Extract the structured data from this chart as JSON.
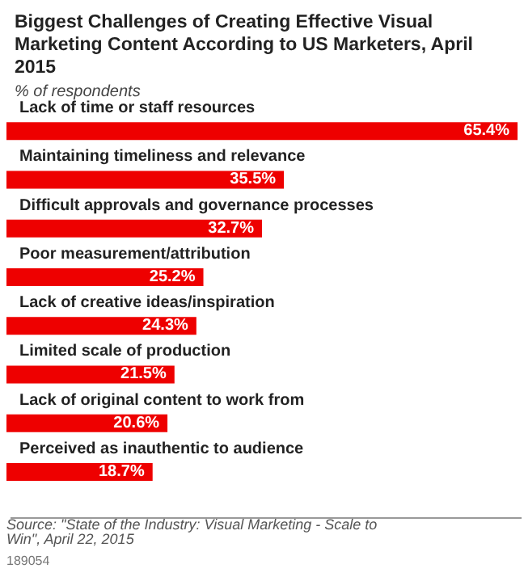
{
  "chart_data": {
    "type": "bar",
    "orientation": "horizontal",
    "title": "Biggest Challenges of Creating Effective Visual Marketing Content According to US Marketers, April 2015",
    "subtitle": "% of respondents",
    "categories": [
      "Lack of time or staff resources",
      "Maintaining timeliness and relevance",
      "Difficult approvals and governance processes",
      "Poor measurement/attribution",
      "Lack of creative ideas/inspiration",
      "Limited scale of production",
      "Lack of original content to work from",
      "Perceived as inauthentic to audience"
    ],
    "values": [
      65.4,
      35.5,
      32.7,
      25.2,
      24.3,
      21.5,
      20.6,
      18.7
    ],
    "value_labels": [
      "65.4%",
      "35.5%",
      "32.7%",
      "25.2%",
      "24.3%",
      "21.5%",
      "20.6%",
      "18.7%"
    ],
    "color": "#ee0000",
    "annotations": [
      "Source: \"State of the Industry: Visual Marketing - Scale to Win\", April 22, 2015",
      "189054"
    ]
  }
}
